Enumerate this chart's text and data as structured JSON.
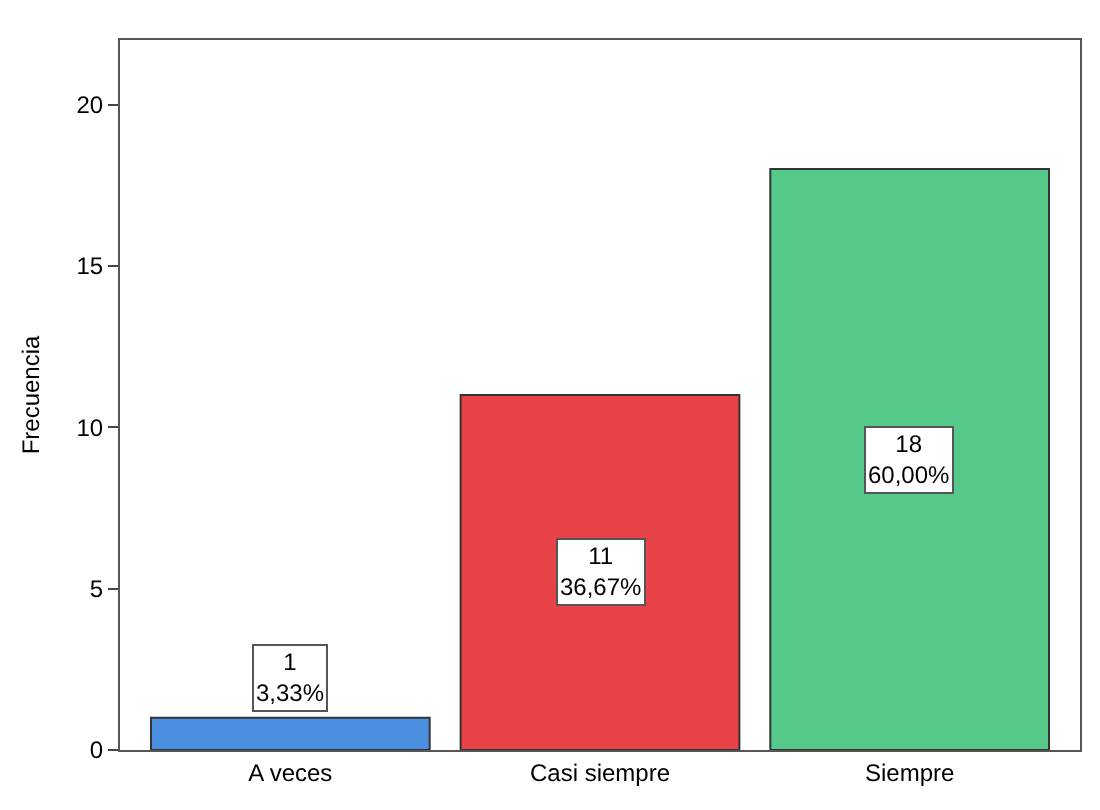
{
  "chart_data": {
    "type": "bar",
    "ylabel": "Frecuencia",
    "categories": [
      "A veces",
      "Casi siempre",
      "Siempre"
    ],
    "values": [
      1,
      11,
      18
    ],
    "colors": [
      "#4a8fe0",
      "#e84448",
      "#55c98a"
    ],
    "value_labels": [
      "1\n3,33%",
      "11\n36,67%",
      "18\n60,00%"
    ],
    "ylim": [
      0,
      22
    ],
    "yticks": [
      0,
      5,
      10,
      15,
      20
    ]
  }
}
